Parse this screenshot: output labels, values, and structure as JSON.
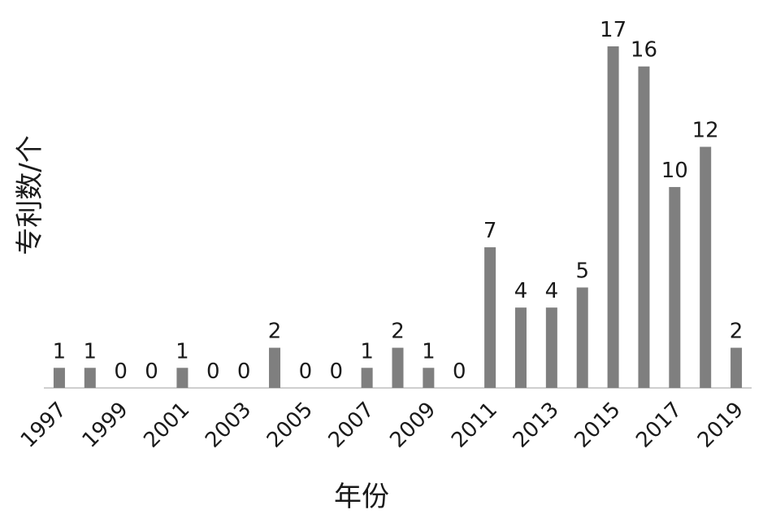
{
  "chart_data": {
    "type": "bar",
    "x_label": "年份",
    "y_label": "专利数/个",
    "categories": [
      "1997",
      null,
      "1999",
      null,
      "2001",
      null,
      "2003",
      null,
      "2005",
      null,
      "2007",
      null,
      "2009",
      null,
      "2011",
      null,
      "2013",
      null,
      "2015",
      null,
      "2017",
      null,
      "2019"
    ],
    "values": [
      1,
      1,
      0,
      0,
      1,
      0,
      0,
      2,
      0,
      0,
      1,
      2,
      1,
      0,
      7,
      4,
      4,
      5,
      17,
      16,
      10,
      12,
      2
    ],
    "color": "#7f7f7f"
  }
}
